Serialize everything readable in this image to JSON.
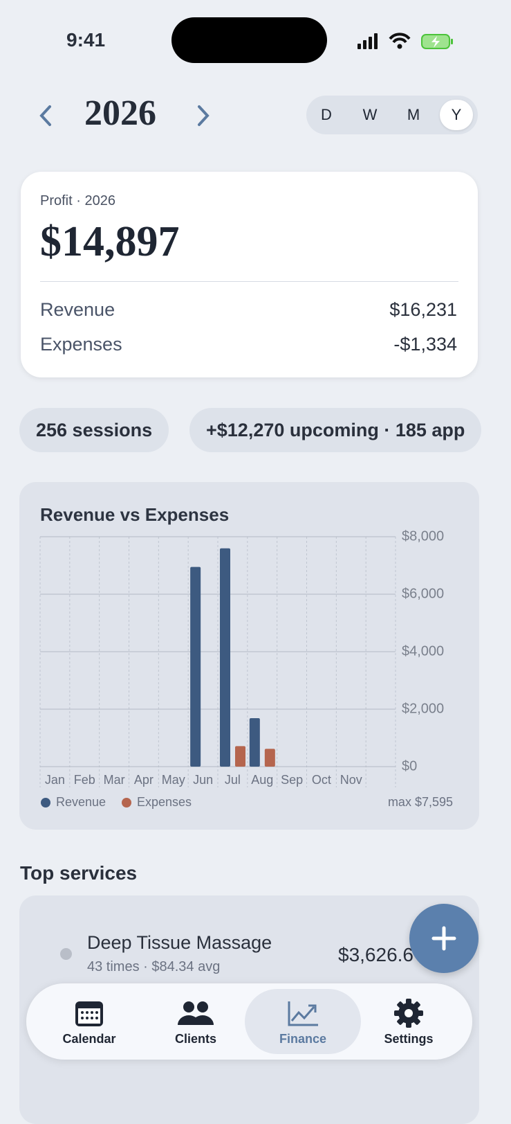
{
  "status": {
    "time": "9:41"
  },
  "header": {
    "year": "2026",
    "segments": [
      "D",
      "W",
      "M",
      "Y"
    ],
    "selected": "Y"
  },
  "summary": {
    "label": "Profit · 2026",
    "profit": "$14,897",
    "rows": [
      {
        "label": "Revenue",
        "value": "$16,231"
      },
      {
        "label": "Expenses",
        "value": "-$1,334"
      }
    ]
  },
  "chips": [
    "256 sessions",
    "+$12,270 upcoming · 185 app"
  ],
  "chart": {
    "type": "bar",
    "title": "Revenue vs Expenses",
    "categories": [
      "Jan",
      "Feb",
      "Mar",
      "Apr",
      "May",
      "Jun",
      "Jul",
      "Aug",
      "Sep",
      "Oct",
      "Nov",
      null
    ],
    "series": [
      {
        "name": "Revenue",
        "color": "#3d5a80",
        "values": [
          0,
          0,
          0,
          0,
          0,
          6950,
          7595,
          1686,
          0,
          0,
          0,
          0
        ]
      },
      {
        "name": "Expenses",
        "color": "#b5654e",
        "values": [
          0,
          0,
          0,
          0,
          0,
          0,
          714,
          620,
          0,
          0,
          0,
          0
        ]
      }
    ],
    "ylim": [
      0,
      8000
    ],
    "yticks": [
      {
        "value": 0,
        "label": "$0"
      },
      {
        "value": 2000,
        "label": "$2,000"
      },
      {
        "value": 4000,
        "label": "$4,000"
      },
      {
        "value": 6000,
        "label": "$6,000"
      },
      {
        "value": 8000,
        "label": "$8,000"
      }
    ],
    "grid": true,
    "annotation": "max $7,595"
  },
  "services": {
    "title": "Top services",
    "items": [
      {
        "name": "Deep Tissue Massage",
        "detail": "43 times · $84.34 avg",
        "amount": "$3,626.6"
      }
    ]
  },
  "nav": {
    "tabs": [
      "Calendar",
      "Clients",
      "Finance",
      "Settings"
    ],
    "active": "Finance"
  }
}
